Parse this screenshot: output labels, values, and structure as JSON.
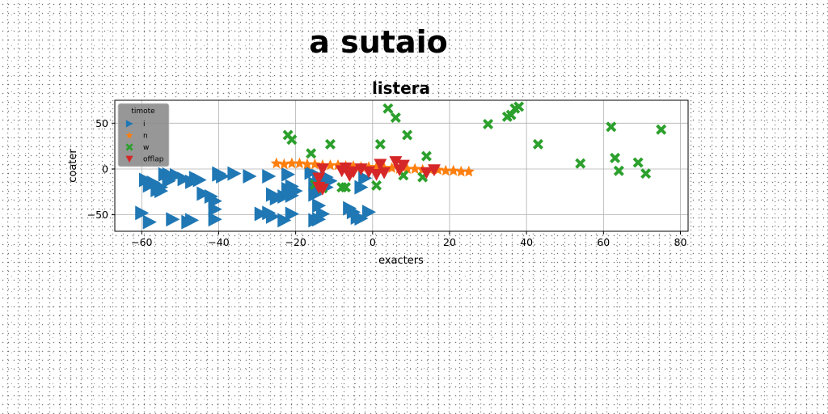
{
  "figure": {
    "suptitle": "a sutaio"
  },
  "chart_data": {
    "type": "scatter",
    "title": "listera",
    "xlabel": "exacters",
    "ylabel": "coater",
    "xlim": [
      -67,
      82
    ],
    "ylim": [
      -68,
      75
    ],
    "xticks": [
      -60,
      -40,
      -20,
      0,
      20,
      40,
      60,
      80
    ],
    "yticks": [
      -50,
      0,
      50
    ],
    "grid": true,
    "legend": {
      "title": "timote",
      "placement": "upper-left"
    },
    "series": [
      {
        "name": "i",
        "marker": "triangle-right",
        "color": "#1f77b4",
        "points": [
          [
            -60,
            -48
          ],
          [
            -59,
            -12
          ],
          [
            -58,
            -58
          ],
          [
            -58,
            -18
          ],
          [
            -57,
            -15
          ],
          [
            -56,
            -23
          ],
          [
            -55,
            -20
          ],
          [
            -55,
            -24
          ],
          [
            -54,
            -6
          ],
          [
            -53,
            -6
          ],
          [
            -53,
            -13
          ],
          [
            -52,
            -55
          ],
          [
            -51,
            -7
          ],
          [
            -49,
            -11
          ],
          [
            -48,
            -58
          ],
          [
            -47,
            -56
          ],
          [
            -47,
            -14
          ],
          [
            -46,
            -10
          ],
          [
            -45,
            -12
          ],
          [
            -44,
            -27
          ],
          [
            -42,
            -30
          ],
          [
            -41,
            -35
          ],
          [
            -41,
            -44
          ],
          [
            -41,
            -55
          ],
          [
            -40,
            -5
          ],
          [
            -40,
            -6
          ],
          [
            -39,
            -8
          ],
          [
            -36,
            -5
          ],
          [
            -32,
            -8
          ],
          [
            -29,
            -49
          ],
          [
            -27,
            -48
          ],
          [
            -27,
            -8
          ],
          [
            -26,
            -52
          ],
          [
            -26,
            -28
          ],
          [
            -25,
            -32
          ],
          [
            -23,
            -56
          ],
          [
            -23,
            -30
          ],
          [
            -22,
            -25
          ],
          [
            -22,
            -22
          ],
          [
            -22,
            -6
          ],
          [
            -21,
            -19
          ],
          [
            -21,
            -29
          ],
          [
            -21,
            -49
          ],
          [
            -20,
            -24
          ],
          [
            -16,
            -4
          ],
          [
            -15,
            -16
          ],
          [
            -15,
            -28
          ],
          [
            -15,
            -56
          ],
          [
            -14,
            -40
          ],
          [
            -14,
            -55
          ],
          [
            -14,
            -22
          ],
          [
            -14,
            -8
          ],
          [
            -13,
            -49
          ],
          [
            -12,
            -9
          ],
          [
            -12,
            -20
          ],
          [
            -11,
            -13
          ],
          [
            -6,
            -43
          ],
          [
            -5,
            -47
          ],
          [
            -4,
            -53
          ],
          [
            -3,
            -20
          ],
          [
            -3,
            -54
          ],
          [
            -2,
            -10
          ],
          [
            -1,
            -47
          ]
        ]
      },
      {
        "name": "n",
        "marker": "star",
        "color": "#ff7f0e",
        "points": [
          [
            -25,
            6
          ],
          [
            -23,
            5
          ],
          [
            -21,
            6
          ],
          [
            -19,
            6
          ],
          [
            -17,
            5
          ],
          [
            -15,
            5
          ],
          [
            -13,
            4
          ],
          [
            -11,
            4
          ],
          [
            -9,
            4
          ],
          [
            -7,
            3
          ],
          [
            -5,
            3
          ],
          [
            -3,
            2
          ],
          [
            -1,
            2
          ],
          [
            1,
            2
          ],
          [
            3,
            1
          ],
          [
            5,
            1
          ],
          [
            7,
            0
          ],
          [
            9,
            0
          ],
          [
            11,
            0
          ],
          [
            13,
            -1
          ],
          [
            15,
            -1
          ],
          [
            17,
            -1
          ],
          [
            19,
            -2
          ],
          [
            21,
            -2
          ],
          [
            23,
            -3
          ],
          [
            25,
            -3
          ]
        ]
      },
      {
        "name": "w",
        "marker": "x-filled",
        "color": "#2ca02c",
        "points": [
          [
            -22,
            37
          ],
          [
            -21,
            32
          ],
          [
            -16,
            17
          ],
          [
            -15,
            -17
          ],
          [
            -13,
            -21
          ],
          [
            -11,
            27
          ],
          [
            -8,
            -20
          ],
          [
            -7,
            -20
          ],
          [
            1,
            -18
          ],
          [
            2,
            27
          ],
          [
            4,
            66
          ],
          [
            6,
            56
          ],
          [
            8,
            -7
          ],
          [
            9,
            37
          ],
          [
            13,
            -9
          ],
          [
            14,
            14
          ],
          [
            30,
            49
          ],
          [
            35,
            57
          ],
          [
            36,
            59
          ],
          [
            37,
            66
          ],
          [
            38,
            68
          ],
          [
            43,
            27
          ],
          [
            54,
            6
          ],
          [
            62,
            46
          ],
          [
            63,
            12
          ],
          [
            64,
            -2
          ],
          [
            69,
            7
          ],
          [
            71,
            -5
          ],
          [
            75,
            43
          ]
        ]
      },
      {
        "name": "offlap",
        "marker": "triangle-down",
        "color": "#d62728",
        "points": [
          [
            -14,
            -10
          ],
          [
            -14,
            -20
          ],
          [
            -13,
            -22
          ],
          [
            -13,
            0
          ],
          [
            -8,
            -2
          ],
          [
            -7,
            1
          ],
          [
            -6,
            -7
          ],
          [
            -5,
            -3
          ],
          [
            -3,
            0
          ],
          [
            -1,
            -3
          ],
          [
            1,
            -6
          ],
          [
            2,
            5
          ],
          [
            3,
            -4
          ],
          [
            6,
            8
          ],
          [
            7,
            -1
          ],
          [
            8,
            4
          ],
          [
            14,
            -4
          ],
          [
            16,
            -1
          ]
        ]
      }
    ]
  }
}
